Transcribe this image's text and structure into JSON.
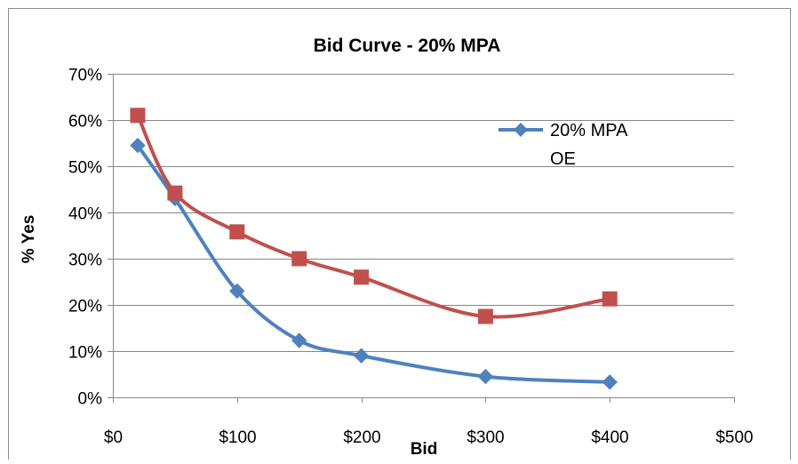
{
  "chart_data": {
    "type": "scatter",
    "title": "Bid Curve - 20% MPA",
    "xlabel": "Bid",
    "ylabel": "% Yes",
    "xlim": [
      0,
      500
    ],
    "ylim": [
      0,
      0.7
    ],
    "x_ticks": [
      "$0",
      "$100",
      "$200",
      "$300",
      "$400",
      "$500"
    ],
    "y_ticks": [
      "0%",
      "10%",
      "20%",
      "30%",
      "40%",
      "50%",
      "60%",
      "70%"
    ],
    "grid": true,
    "smooth_lines": true,
    "legend_position": "top-right",
    "series": [
      {
        "name": "20% MPA",
        "color": "#4f81bd",
        "marker": "diamond",
        "x": [
          20,
          50,
          100,
          150,
          200,
          300,
          400
        ],
        "y": [
          0.545,
          0.43,
          0.23,
          0.123,
          0.09,
          0.045,
          0.033
        ]
      },
      {
        "name": "OE",
        "color": "#c0504d",
        "marker": "square",
        "x": [
          20,
          50,
          100,
          150,
          200,
          300,
          400
        ],
        "y": [
          0.61,
          0.442,
          0.358,
          0.3,
          0.26,
          0.175,
          0.213
        ]
      }
    ]
  }
}
